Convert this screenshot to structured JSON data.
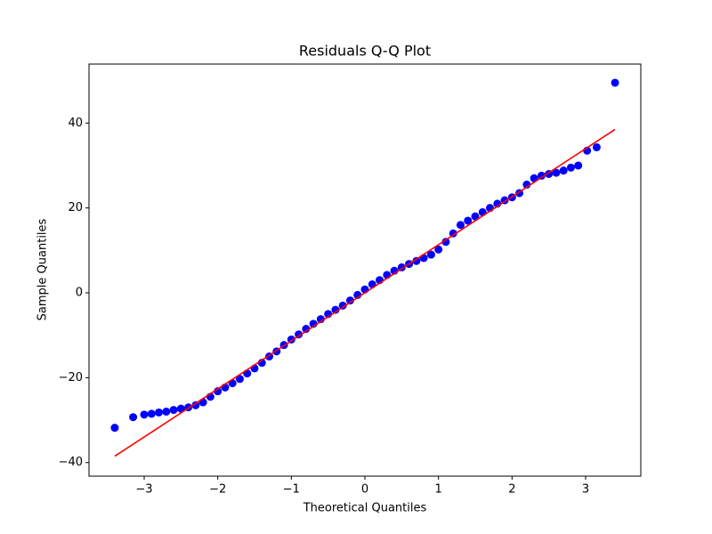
{
  "chart_data": {
    "type": "scatter",
    "title": "Residuals Q-Q Plot",
    "x_label": "Theoretical Quantiles",
    "y_label": "Sample Quantiles",
    "xlim": [
      -3.75,
      3.75
    ],
    "ylim": [
      -43.2,
      53.9
    ],
    "xticks": [
      {
        "value": -3,
        "label": "−3"
      },
      {
        "value": -2,
        "label": "−2"
      },
      {
        "value": -1,
        "label": "−1"
      },
      0,
      1,
      2,
      3
    ],
    "yticks": [
      {
        "value": -40,
        "label": "−40"
      },
      {
        "value": -20,
        "label": "−20"
      },
      0,
      20,
      40
    ],
    "grid": false,
    "points": {
      "color": "#0000ff",
      "x": [
        -3.4,
        -3.15,
        -3.0,
        -2.9,
        -2.8,
        -2.7,
        -2.6,
        -2.5,
        -2.4,
        -2.3,
        -2.2,
        -2.1,
        -2.0,
        -1.9,
        -1.8,
        -1.7,
        -1.6,
        -1.5,
        -1.4,
        -1.3,
        -1.2,
        -1.1,
        -1.0,
        -0.9,
        -0.8,
        -0.7,
        -0.6,
        -0.5,
        -0.4,
        -0.3,
        -0.2,
        -0.1,
        0,
        0.1,
        0.2,
        0.3,
        0.4,
        0.5,
        0.6,
        0.7,
        0.8,
        0.9,
        1.0,
        1.1,
        1.2,
        1.3,
        1.4,
        1.5,
        1.6,
        1.7,
        1.8,
        1.9,
        2.0,
        2.1,
        2.2,
        2.3,
        2.4,
        2.5,
        2.6,
        2.7,
        2.8,
        2.9,
        3.02,
        3.15,
        3.4
      ],
      "y": [
        -31.8,
        -29.3,
        -28.7,
        -28.5,
        -28.2,
        -28,
        -27.6,
        -27.3,
        -27,
        -26.5,
        -25.8,
        -24.5,
        -23.2,
        -22.3,
        -21.3,
        -20.3,
        -19,
        -17.8,
        -16.5,
        -15,
        -13.8,
        -12.3,
        -11,
        -9.8,
        -8.5,
        -7.3,
        -6.2,
        -5.0,
        -4.0,
        -3.0,
        -1.8,
        -0.5,
        0.8,
        2,
        3,
        4.2,
        5.2,
        6,
        6.8,
        7.5,
        8.2,
        9,
        10.2,
        12,
        14,
        16,
        17,
        18,
        19,
        20,
        21,
        21.8,
        22.5,
        23.5,
        25.5,
        27,
        27.6,
        28,
        28.3,
        28.8,
        29.5,
        30,
        33.5,
        34.3,
        49.5
      ]
    },
    "fit_line": {
      "color": "#ff0000",
      "x": [
        -3.4,
        3.4
      ],
      "y": [
        -38.5,
        38.5
      ]
    }
  }
}
